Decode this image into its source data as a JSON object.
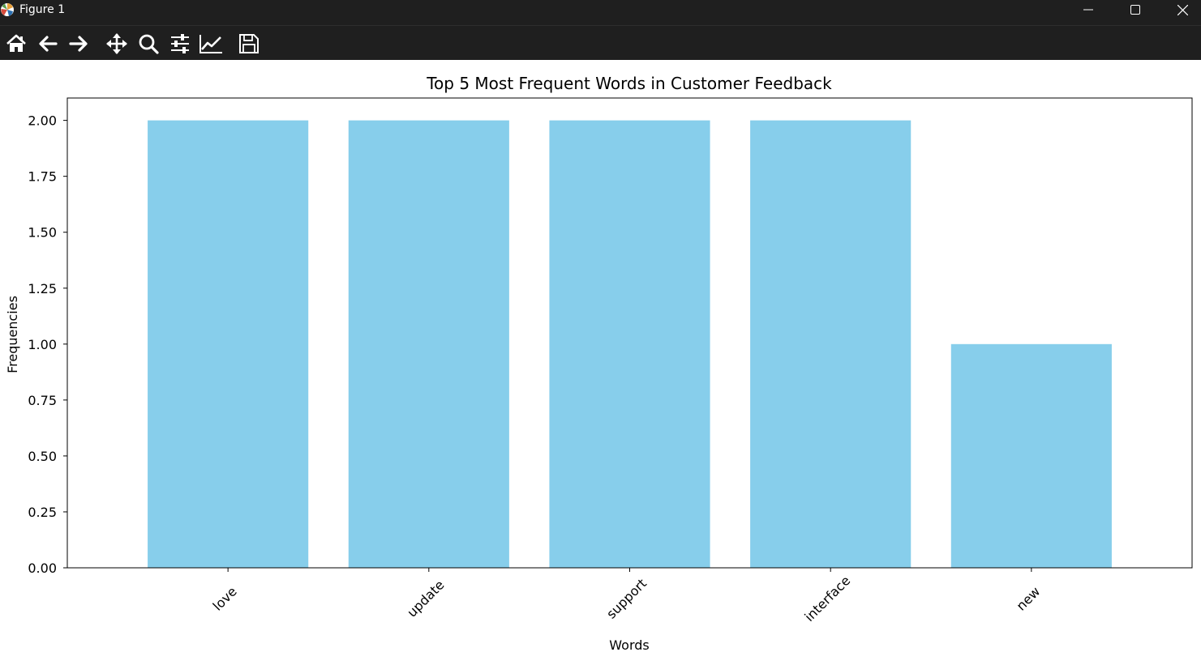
{
  "window": {
    "title": "Figure 1",
    "controls": [
      "minimize-icon",
      "maximize-icon",
      "close-icon"
    ]
  },
  "toolbar": {
    "tools": [
      {
        "name": "home",
        "icon": "home-icon"
      },
      {
        "name": "back",
        "icon": "arrow-left-icon"
      },
      {
        "name": "forward",
        "icon": "arrow-right-icon"
      },
      {
        "name": "pan",
        "icon": "move-icon"
      },
      {
        "name": "zoom",
        "icon": "magnifier-icon"
      },
      {
        "name": "configure-subplots",
        "icon": "sliders-icon"
      },
      {
        "name": "edit-axis",
        "icon": "line-chart-icon"
      },
      {
        "name": "save",
        "icon": "floppy-disk-icon"
      }
    ]
  },
  "colors": {
    "bar": "#87ceeb",
    "chrome": "#1f1f1f"
  },
  "chart_data": {
    "type": "bar",
    "title": "Top 5 Most Frequent Words in Customer Feedback",
    "xlabel": "Words",
    "ylabel": "Frequencies",
    "categories": [
      "love",
      "update",
      "support",
      "interface",
      "new"
    ],
    "values": [
      2,
      2,
      2,
      2,
      1
    ],
    "ylim": [
      0,
      2.1
    ],
    "yticks": [
      "0.00",
      "0.25",
      "0.50",
      "0.75",
      "1.00",
      "1.25",
      "1.50",
      "1.75",
      "2.00"
    ],
    "xtick_rotation": 45,
    "grid": false,
    "legend": "none"
  }
}
